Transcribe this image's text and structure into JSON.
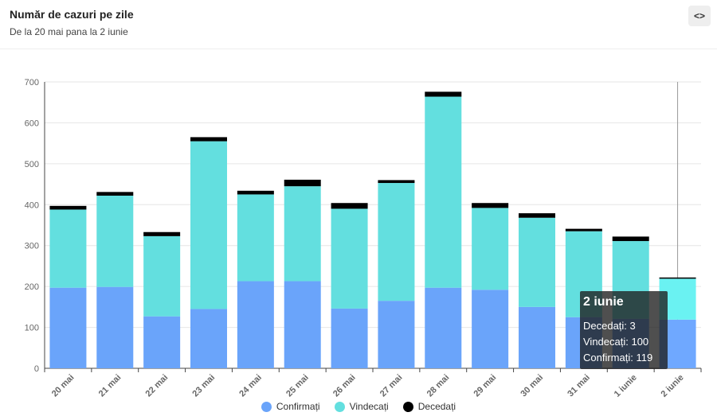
{
  "header": {
    "title": "Număr de cazuri pe zile",
    "subtitle": "De la 20 mai pana la 2 iunie",
    "code_button_label": "<>"
  },
  "colors": {
    "confirmati": "#6aa4fa",
    "vindecati": "#63dfdf",
    "decedati": "#000000",
    "confirmati_highlight": "#6fa8ff",
    "vindecati_highlight": "#6af2f2"
  },
  "chart_data": {
    "type": "bar",
    "stacked": true,
    "title": "Număr de cazuri pe zile",
    "subtitle": "De la 20 mai pana la 2 iunie",
    "xlabel": "",
    "ylabel": "",
    "ylim": [
      0,
      700
    ],
    "yticks": [
      0,
      100,
      200,
      300,
      400,
      500,
      600,
      700
    ],
    "grid": true,
    "legend_position": "bottom-center",
    "categories": [
      "20 mai",
      "21 mai",
      "22 mai",
      "23 mai",
      "24 mai",
      "25 mai",
      "26 mai",
      "27 mai",
      "28 mai",
      "29 mai",
      "30 mai",
      "31 mai",
      "1 iunie",
      "2 iunie"
    ],
    "series": [
      {
        "name": "Confirmați",
        "values": [
          197,
          199,
          127,
          145,
          213,
          213,
          146,
          165,
          197,
          192,
          150,
          125,
          121,
          119
        ]
      },
      {
        "name": "Vindecați",
        "values": [
          191,
          223,
          196,
          410,
          212,
          232,
          244,
          288,
          467,
          200,
          218,
          210,
          190,
          100
        ]
      },
      {
        "name": "Decedați",
        "values": [
          9,
          9,
          10,
          10,
          9,
          16,
          14,
          7,
          12,
          12,
          11,
          6,
          11,
          3
        ]
      }
    ],
    "highlighted_category": "2 iunie"
  },
  "tooltip": {
    "title": "2 iunie",
    "lines": [
      "Decedați: 3",
      "Vindecați: 100",
      "Confirmați: 119"
    ]
  },
  "legend": [
    {
      "label": "Confirmați",
      "color": "#6aa4fa"
    },
    {
      "label": "Vindecați",
      "color": "#63dfdf"
    },
    {
      "label": "Decedați",
      "color": "#000000"
    }
  ]
}
